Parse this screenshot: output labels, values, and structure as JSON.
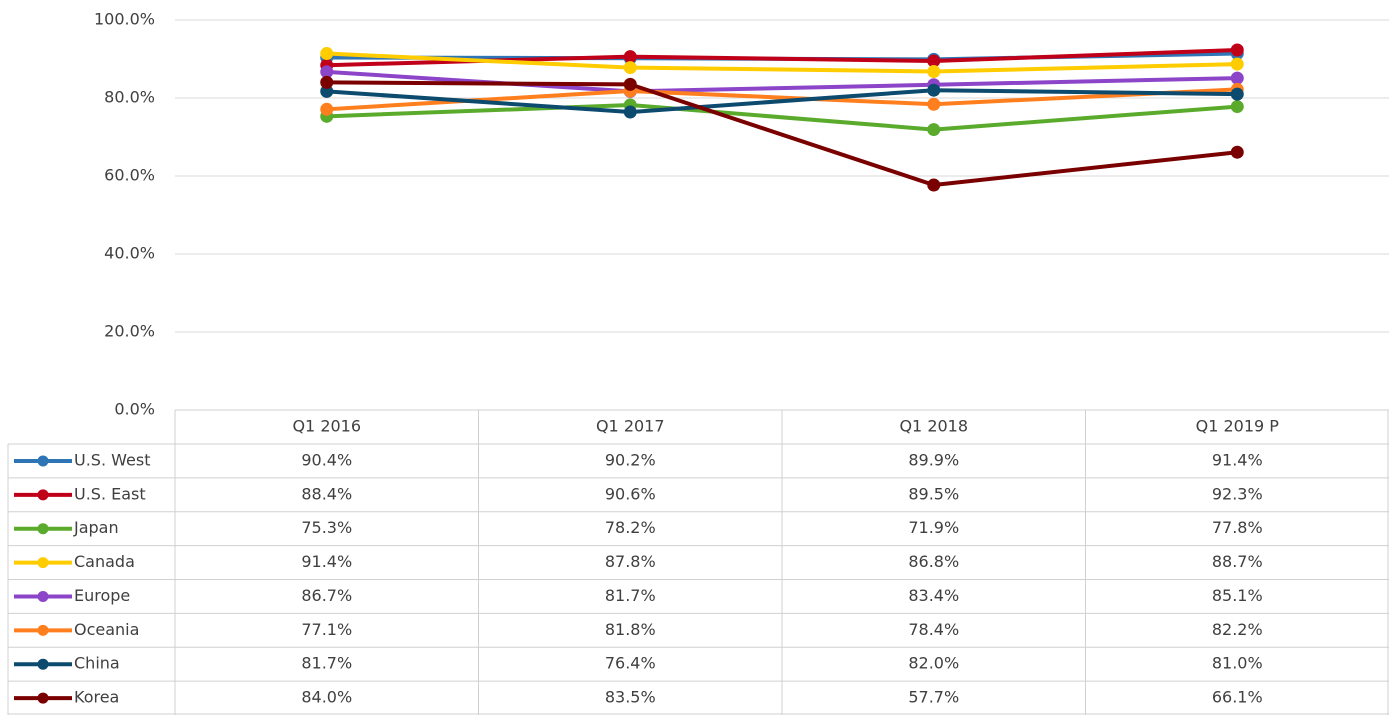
{
  "chart_data": {
    "type": "line",
    "categories": [
      "Q1 2016",
      "Q1 2017",
      "Q1 2018",
      "Q1 2019 P"
    ],
    "ylim": [
      0,
      100
    ],
    "yticks": [
      {
        "value": 0,
        "label": "0.0%"
      },
      {
        "value": 20,
        "label": "20.0%"
      },
      {
        "value": 40,
        "label": "40.0%"
      },
      {
        "value": 60,
        "label": "60.0%"
      },
      {
        "value": 80,
        "label": "80.0%"
      },
      {
        "value": 100,
        "label": "100.0%"
      }
    ],
    "grid": true,
    "series": [
      {
        "name": "U.S. West",
        "color": "#2e75b6",
        "values": [
          90.4,
          90.2,
          89.9,
          91.4
        ],
        "value_labels": [
          "90.4%",
          "90.2%",
          "89.9%",
          "91.4%"
        ]
      },
      {
        "name": "U.S. East",
        "color": "#c00018",
        "values": [
          88.4,
          90.6,
          89.5,
          92.3
        ],
        "value_labels": [
          "88.4%",
          "90.6%",
          "89.5%",
          "92.3%"
        ]
      },
      {
        "name": "Japan",
        "color": "#5aab2c",
        "values": [
          75.3,
          78.2,
          71.9,
          77.8
        ],
        "value_labels": [
          "75.3%",
          "78.2%",
          "71.9%",
          "77.8%"
        ]
      },
      {
        "name": "Canada",
        "color": "#ffcc00",
        "values": [
          91.4,
          87.8,
          86.8,
          88.7
        ],
        "value_labels": [
          "91.4%",
          "87.8%",
          "86.8%",
          "88.7%"
        ]
      },
      {
        "name": "Europe",
        "color": "#8c44c8",
        "values": [
          86.7,
          81.7,
          83.4,
          85.1
        ],
        "value_labels": [
          "86.7%",
          "81.7%",
          "83.4%",
          "85.1%"
        ]
      },
      {
        "name": "Oceania",
        "color": "#ff7f1e",
        "values": [
          77.1,
          81.8,
          78.4,
          82.2
        ],
        "value_labels": [
          "77.1%",
          "81.8%",
          "78.4%",
          "82.2%"
        ]
      },
      {
        "name": "China",
        "color": "#0c4a6e",
        "values": [
          81.7,
          76.4,
          82.0,
          81.0
        ],
        "value_labels": [
          "81.7%",
          "76.4%",
          "82.0%",
          "81.0%"
        ]
      },
      {
        "name": "Korea",
        "color": "#7a0000",
        "values": [
          84.0,
          83.5,
          57.7,
          66.1
        ],
        "value_labels": [
          "84.0%",
          "83.5%",
          "57.7%",
          "66.1%"
        ]
      }
    ]
  }
}
